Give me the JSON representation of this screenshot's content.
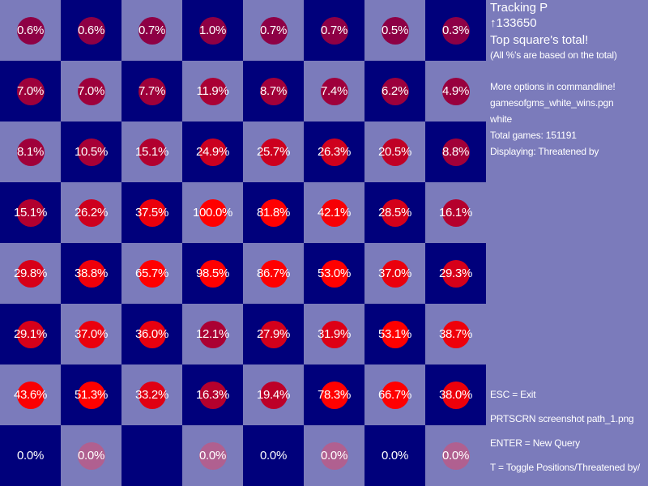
{
  "board": {
    "rows": [
      [
        "0.6%",
        "0.6%",
        "0.7%",
        "1.0%",
        "0.7%",
        "0.7%",
        "0.5%",
        "0.3%"
      ],
      [
        "7.0%",
        "7.0%",
        "7.7%",
        "11.9%",
        "8.7%",
        "7.4%",
        "6.2%",
        "4.9%"
      ],
      [
        "8.1%",
        "10.5%",
        "15.1%",
        "24.9%",
        "25.7%",
        "26.3%",
        "20.5%",
        "8.8%"
      ],
      [
        "15.1%",
        "26.2%",
        "37.5%",
        "100.0%",
        "81.8%",
        "42.1%",
        "28.5%",
        "16.1%"
      ],
      [
        "29.8%",
        "38.8%",
        "65.7%",
        "98.5%",
        "86.7%",
        "53.0%",
        "37.0%",
        "29.3%"
      ],
      [
        "29.1%",
        "37.0%",
        "36.0%",
        "12.1%",
        "27.9%",
        "31.9%",
        "53.1%",
        "38.7%"
      ],
      [
        "43.6%",
        "51.3%",
        "33.2%",
        "16.3%",
        "19.4%",
        "78.3%",
        "66.7%",
        "38.0%"
      ],
      [
        "0.0%",
        "0.0%",
        "",
        "0.0%",
        "0.0%",
        "0.0%",
        "0.0%",
        "0.0%"
      ]
    ],
    "dot_pct": [
      [
        0.6,
        0.6,
        0.7,
        1.0,
        0.7,
        0.7,
        0.5,
        0.3
      ],
      [
        7.0,
        7.0,
        7.7,
        11.9,
        8.7,
        7.4,
        6.2,
        4.9
      ],
      [
        8.1,
        10.5,
        15.1,
        24.9,
        25.7,
        26.3,
        20.5,
        8.8
      ],
      [
        15.1,
        26.2,
        37.5,
        100.0,
        81.8,
        42.1,
        28.5,
        16.1
      ],
      [
        29.8,
        38.8,
        65.7,
        98.5,
        86.7,
        53.0,
        37.0,
        29.3
      ],
      [
        29.1,
        37.0,
        36.0,
        12.1,
        27.9,
        31.9,
        53.1,
        38.7
      ],
      [
        43.6,
        51.3,
        33.2,
        16.3,
        19.4,
        78.3,
        66.7,
        38.0
      ],
      [
        -1,
        0.0,
        -1,
        0.0,
        -1,
        0.0,
        -1,
        0.0
      ]
    ],
    "colors": {
      "light_square": "#7b7bbb",
      "dark_square": "#00007b",
      "dot_full": "#ff0000",
      "dot_empty": "#b06090"
    }
  },
  "panel": {
    "tracking": "Tracking P",
    "piece_id": "↑133650",
    "top_square": "Top square's total!",
    "note": "(All %'s are based on the total)",
    "more_options": "More options in commandline!",
    "file": "gamesofgms_white_wins.pgn",
    "side": "white",
    "total_games": "Total games: 151191",
    "displaying": "Displaying: Threatened by",
    "esc": "ESC = Exit",
    "prtscrn": "PRTSCRN screenshot path_1.png",
    "enter": "ENTER = New Query",
    "toggle": "T = Toggle Positions/Threatened by/"
  }
}
